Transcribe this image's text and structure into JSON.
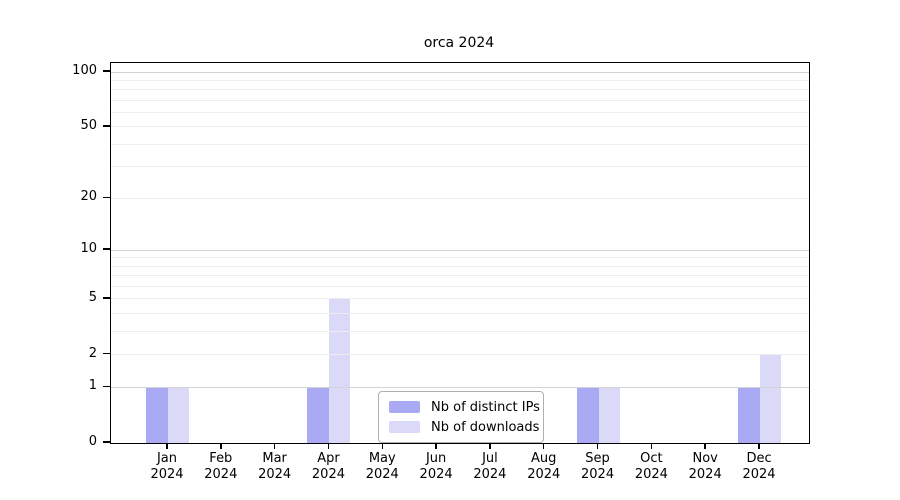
{
  "chart_data": {
    "type": "bar",
    "title": "orca 2024",
    "categories": [
      "Jan",
      "Feb",
      "Mar",
      "Apr",
      "May",
      "Jun",
      "Jul",
      "Aug",
      "Sep",
      "Oct",
      "Nov",
      "Dec"
    ],
    "year_label": "2024",
    "series": [
      {
        "name": "Nb of distinct IPs",
        "color": "#a9a9f4",
        "values": [
          1,
          0,
          0,
          1,
          0,
          0,
          0,
          0,
          1,
          0,
          0,
          1
        ]
      },
      {
        "name": "Nb of downloads",
        "color": "#dadaf8",
        "values": [
          1,
          0,
          0,
          5,
          0,
          0,
          0,
          0,
          1,
          0,
          0,
          2
        ]
      }
    ],
    "y_scale": "log1p",
    "ylim": [
      0,
      110
    ],
    "y_ticks": [
      0,
      1,
      2,
      5,
      10,
      20,
      50,
      100
    ],
    "y_major_grid": [
      1,
      10,
      100
    ],
    "y_minor_grid": [
      2,
      3,
      4,
      5,
      6,
      7,
      8,
      9,
      20,
      30,
      40,
      50,
      60,
      70,
      80,
      90
    ],
    "grid": true,
    "legend_position": "lower center"
  }
}
